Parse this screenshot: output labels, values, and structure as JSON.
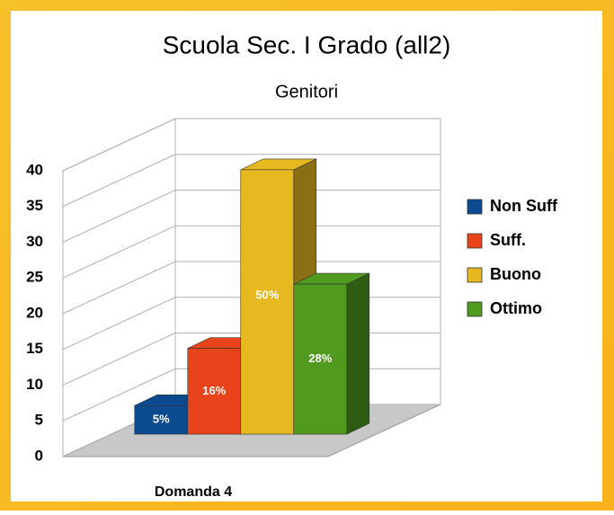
{
  "chart_data": {
    "type": "bar3d",
    "title": "Scuola Sec. I Grado (all2)",
    "subtitle": "Genitori",
    "categories": [
      "Domanda 4"
    ],
    "series": [
      {
        "name": "Non Suff",
        "color": "#0b4a8e",
        "values": [
          4
        ],
        "value_labels": [
          "5%"
        ]
      },
      {
        "name": "Suff.",
        "color": "#e8431b",
        "values": [
          12
        ],
        "value_labels": [
          "16%"
        ]
      },
      {
        "name": "Buono",
        "color": "#e6b921",
        "values": [
          37
        ],
        "value_labels": [
          "50%"
        ]
      },
      {
        "name": "Ottimo",
        "color": "#4f9a1f",
        "values": [
          21
        ],
        "value_labels": [
          "28%"
        ]
      }
    ],
    "ylim": [
      0,
      40
    ],
    "yticks": [
      0,
      5,
      10,
      15,
      20,
      25,
      30,
      35,
      40
    ],
    "grid": true,
    "legend": "right"
  }
}
